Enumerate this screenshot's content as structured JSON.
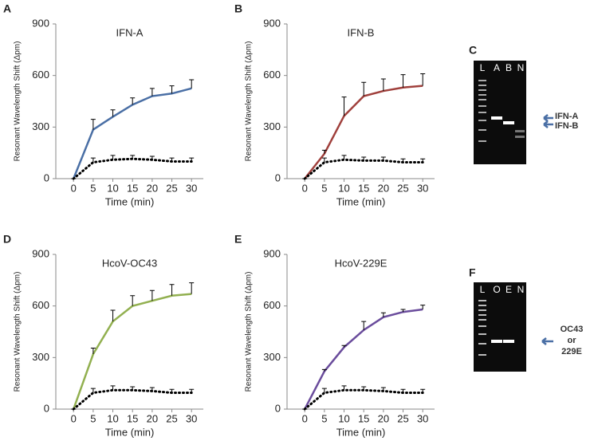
{
  "chart_data": [
    {
      "type": "line",
      "panel": "A",
      "title": "IFN-A",
      "xlabel": "Time (min)",
      "ylabel": "Resonant Wavelength Shift (Δpm)",
      "x": [
        0,
        5,
        10,
        15,
        20,
        25,
        30
      ],
      "xlim": [
        -4.5,
        33
      ],
      "xticks": [
        0,
        5,
        10,
        15,
        20,
        25,
        30
      ],
      "ylim": [
        0,
        900
      ],
      "yticks": [
        0,
        300,
        600,
        900
      ],
      "series": [
        {
          "color": "#4a6fa5",
          "style": "solid",
          "values": [
            0,
            285,
            360,
            430,
            480,
            495,
            525
          ],
          "errors": [
            0,
            60,
            40,
            40,
            45,
            45,
            50
          ]
        },
        {
          "color": "#000000",
          "style": "dotted",
          "values": [
            0,
            95,
            110,
            115,
            110,
            100,
            100
          ],
          "errors": [
            0,
            25,
            25,
            20,
            20,
            20,
            20
          ]
        }
      ]
    },
    {
      "type": "line",
      "panel": "B",
      "title": "IFN-B",
      "xlabel": "Time (min)",
      "ylabel": "Resonant Wavelength Shift (Δpm)",
      "x": [
        0,
        5,
        10,
        15,
        20,
        25,
        30
      ],
      "xlim": [
        -4.5,
        33
      ],
      "xticks": [
        0,
        5,
        10,
        15,
        20,
        25,
        30
      ],
      "ylim": [
        0,
        900
      ],
      "yticks": [
        0,
        300,
        600,
        900
      ],
      "series": [
        {
          "color": "#a0403c",
          "style": "solid",
          "values": [
            0,
            145,
            365,
            480,
            510,
            530,
            540
          ],
          "errors": [
            0,
            20,
            110,
            80,
            70,
            75,
            70
          ]
        },
        {
          "color": "#000000",
          "style": "dotted",
          "values": [
            0,
            95,
            110,
            105,
            105,
            95,
            95
          ],
          "errors": [
            0,
            25,
            25,
            20,
            20,
            20,
            20
          ]
        }
      ]
    },
    {
      "type": "line",
      "panel": "D",
      "title": "HcoV-OC43",
      "xlabel": "Time (min)",
      "ylabel": "Resonant Wavelength Shift (Δpm)",
      "x": [
        0,
        5,
        10,
        15,
        20,
        25,
        30
      ],
      "xlim": [
        -4.5,
        33
      ],
      "xticks": [
        0,
        5,
        10,
        15,
        20,
        25,
        30
      ],
      "ylim": [
        0,
        900
      ],
      "yticks": [
        0,
        300,
        600,
        900
      ],
      "series": [
        {
          "color": "#92b050",
          "style": "solid",
          "values": [
            0,
            320,
            510,
            600,
            630,
            660,
            670
          ],
          "errors": [
            0,
            35,
            65,
            60,
            60,
            65,
            65
          ]
        },
        {
          "color": "#000000",
          "style": "dotted",
          "values": [
            0,
            95,
            110,
            110,
            105,
            95,
            95
          ],
          "errors": [
            0,
            25,
            25,
            20,
            20,
            20,
            20
          ]
        }
      ]
    },
    {
      "type": "line",
      "panel": "E",
      "title": "HcoV-229E",
      "xlabel": "Time (min)",
      "ylabel": "Resonant Wavelength Shift (Δpm)",
      "x": [
        0,
        5,
        10,
        15,
        20,
        25,
        30
      ],
      "xlim": [
        -4.5,
        33
      ],
      "xticks": [
        0,
        5,
        10,
        15,
        20,
        25,
        30
      ],
      "ylim": [
        0,
        900
      ],
      "yticks": [
        0,
        300,
        600,
        900
      ],
      "series": [
        {
          "color": "#6a4c9c",
          "style": "solid",
          "values": [
            0,
            220,
            360,
            460,
            535,
            565,
            580
          ],
          "errors": [
            0,
            10,
            10,
            50,
            25,
            15,
            25
          ]
        },
        {
          "color": "#000000",
          "style": "dotted",
          "values": [
            0,
            95,
            110,
            110,
            105,
            95,
            95
          ],
          "errors": [
            0,
            25,
            25,
            20,
            20,
            20,
            20
          ]
        }
      ]
    }
  ],
  "gels": [
    {
      "panel": "C",
      "lanes": [
        "L",
        "A",
        "B",
        "N"
      ],
      "annotations": [
        "IFN-A",
        "IFN-B"
      ]
    },
    {
      "panel": "F",
      "lanes": [
        "L",
        "O",
        "E",
        "N"
      ],
      "annotations": [
        "OC43",
        "or",
        "229E"
      ]
    }
  ]
}
